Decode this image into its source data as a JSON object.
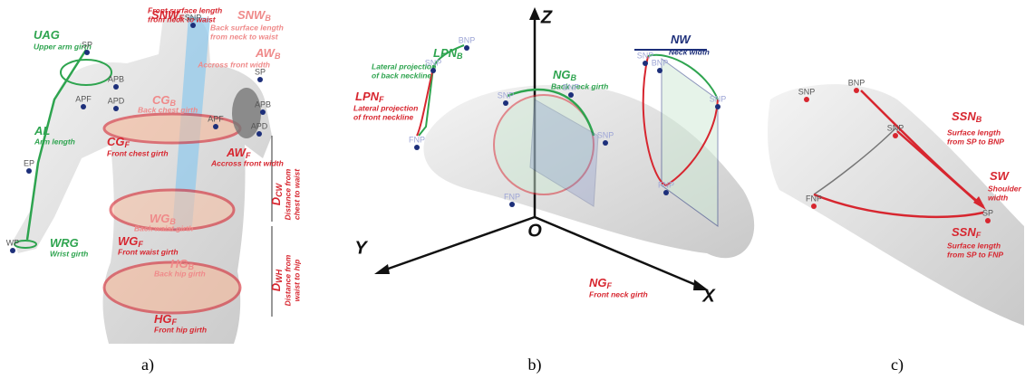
{
  "panels": [
    {
      "caption": "a)",
      "measures": [
        {
          "code": "SNW",
          "sub": "F",
          "lines": [
            "Front surface length",
            "from neck to waist"
          ]
        },
        {
          "code": "SNW",
          "sub": "B",
          "lines": [
            "Back surface length",
            "from neck to waist"
          ]
        },
        {
          "code": "AW",
          "sub": "B",
          "lines": [
            "Accross front width"
          ]
        },
        {
          "code": "UAG",
          "sub": "",
          "lines": [
            "Upper arm girth"
          ]
        },
        {
          "code": "CG",
          "sub": "B",
          "lines": [
            "Back chest girth"
          ]
        },
        {
          "code": "CG",
          "sub": "F",
          "lines": [
            "Front chest girth"
          ]
        },
        {
          "code": "AW",
          "sub": "F",
          "lines": [
            "Accross front width"
          ]
        },
        {
          "code": "AL",
          "sub": "",
          "lines": [
            "Arm length"
          ]
        },
        {
          "code": "WG",
          "sub": "B",
          "lines": [
            "Back waist girth"
          ]
        },
        {
          "code": "D",
          "sub": "CW",
          "lines": [
            "Distance from",
            "chest to waist"
          ]
        },
        {
          "code": "WG",
          "sub": "F",
          "lines": [
            "Front waist girth"
          ]
        },
        {
          "code": "WRG",
          "sub": "",
          "lines": [
            "Wrist girth"
          ]
        },
        {
          "code": "HG",
          "sub": "B",
          "lines": [
            "Back hip girth"
          ]
        },
        {
          "code": "D",
          "sub": "WH",
          "lines": [
            "Distance from",
            "waist to hip"
          ]
        },
        {
          "code": "HG",
          "sub": "F",
          "lines": [
            "Front hip girth"
          ]
        }
      ],
      "points": [
        "SNP",
        "SP",
        "SP",
        "APB",
        "APF",
        "APD",
        "APF",
        "APD",
        "APB",
        "EP",
        "WP"
      ]
    },
    {
      "caption": "b)",
      "axes": [
        "Z",
        "Y",
        "O",
        "X"
      ],
      "measures": [
        {
          "code": "LPN",
          "sub": "B",
          "lines": [
            "Lateral projection",
            "of back neckline"
          ]
        },
        {
          "code": "LPN",
          "sub": "F",
          "lines": [
            "Lateral projection",
            "of front neckline"
          ]
        },
        {
          "code": "NG",
          "sub": "B",
          "lines": [
            "Back neck girth"
          ]
        },
        {
          "code": "NW",
          "sub": "",
          "lines": [
            "Neck width"
          ]
        },
        {
          "code": "NG",
          "sub": "F",
          "lines": [
            "Front neck girth"
          ]
        }
      ],
      "points": [
        "BNP",
        "SNP",
        "FNP",
        "SNP",
        "BNP",
        "SNP",
        "FNP",
        "SNP",
        "BNP",
        "SNP",
        "FNP"
      ]
    },
    {
      "caption": "c)",
      "measures": [
        {
          "code": "SSN",
          "sub": "B",
          "lines": [
            "Surface length",
            "from SP to BNP"
          ]
        },
        {
          "code": "SW",
          "sub": "",
          "lines": [
            "Shoulder",
            "width"
          ]
        },
        {
          "code": "SSN",
          "sub": "F",
          "lines": [
            "Surface length",
            "from SP to FNP"
          ]
        }
      ],
      "points": [
        "SNP",
        "BNP",
        "SNP",
        "FNP",
        "SP"
      ]
    }
  ]
}
